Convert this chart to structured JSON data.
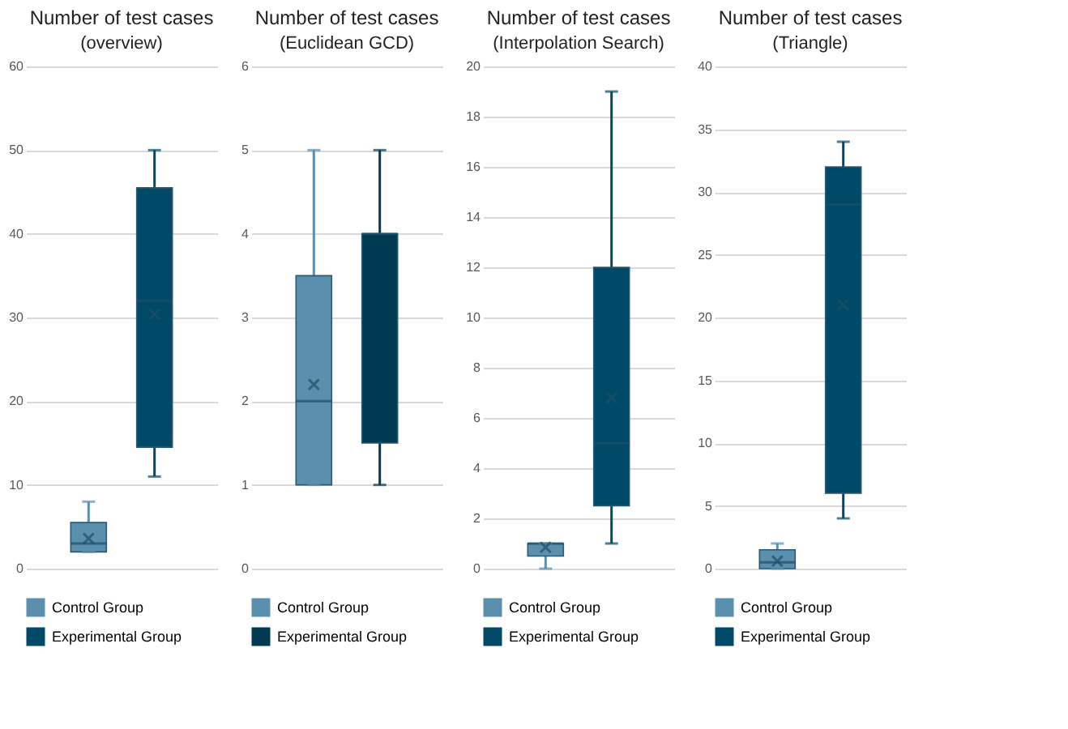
{
  "chart_data": [
    {
      "type": "box",
      "title": "Number of test cases",
      "subtitle": "(overview)",
      "categories": [
        null
      ],
      "ylim": [
        0,
        60
      ],
      "yticks": [
        0,
        10,
        20,
        30,
        40,
        50,
        60
      ],
      "grid": "y",
      "legend": "bottom",
      "tick_labels": "y",
      "series": [
        {
          "name": "Control Group",
          "color": "#5a8fad",
          "boxes": [
            {
              "low": 2,
              "q1": 2,
              "median": 3,
              "q3": 5.5,
              "high": 8,
              "mean": 3.6
            }
          ]
        },
        {
          "name": "Experimental Group",
          "color": "#004a68",
          "boxes": [
            {
              "low": 11,
              "q1": 14.5,
              "median": 32,
              "q3": 45.5,
              "high": 50,
              "mean": 30.4
            }
          ]
        }
      ]
    },
    {
      "type": "box",
      "title": "Number of test cases",
      "subtitle": "(Euclidean GCD)",
      "categories": [
        null
      ],
      "ylim": [
        0,
        6
      ],
      "yticks": [
        0,
        1,
        2,
        3,
        4,
        5,
        6
      ],
      "grid": "y",
      "legend": "bottom",
      "tick_labels": "y",
      "series": [
        {
          "name": "Control Group",
          "color": "#5a8fad",
          "boxes": [
            {
              "low": 1,
              "q1": 1,
              "median": 2,
              "q3": 3.5,
              "high": 5,
              "mean": 2.2
            }
          ]
        },
        {
          "name": "Experimental Group",
          "color": "#003a52",
          "boxes": [
            {
              "low": 1,
              "q1": 1.5,
              "median": 4,
              "q3": 4,
              "high": 5
            }
          ]
        }
      ]
    },
    {
      "type": "box",
      "title": "Number of test cases",
      "subtitle": "(Interpolation Search)",
      "categories": [
        null
      ],
      "ylim": [
        0,
        20
      ],
      "yticks": [
        0,
        2,
        4,
        6,
        8,
        10,
        12,
        14,
        16,
        18,
        20
      ],
      "grid": "y",
      "legend": "bottom",
      "tick_labels": "y",
      "series": [
        {
          "name": "Control Group",
          "color": "#5a8fad",
          "boxes": [
            {
              "low": 0,
              "q1": 0.5,
              "median": 1,
              "q3": 1,
              "high": 1,
              "mean": 0.85
            }
          ]
        },
        {
          "name": "Experimental Group",
          "color": "#004a68",
          "boxes": [
            {
              "low": 1,
              "q1": 2.5,
              "median": 5,
              "q3": 12,
              "high": 19,
              "mean": 6.8
            }
          ]
        }
      ]
    },
    {
      "type": "box",
      "title": "Number of test cases",
      "subtitle": "(Triangle)",
      "categories": [
        null
      ],
      "ylim": [
        0,
        40
      ],
      "yticks": [
        0,
        5,
        10,
        15,
        20,
        25,
        30,
        35,
        40
      ],
      "grid": "y",
      "legend": "bottom",
      "tick_labels": "y",
      "series": [
        {
          "name": "Control Group",
          "color": "#5a8fad",
          "boxes": [
            {
              "low": 0,
              "q1": 0,
              "median": 0.5,
              "q3": 1.5,
              "high": 2,
              "mean": 0.6
            }
          ]
        },
        {
          "name": "Experimental Group",
          "color": "#004a68",
          "boxes": [
            {
              "low": 4,
              "q1": 6,
              "median": 29,
              "q3": 32,
              "high": 34,
              "mean": 21
            }
          ]
        }
      ]
    }
  ]
}
